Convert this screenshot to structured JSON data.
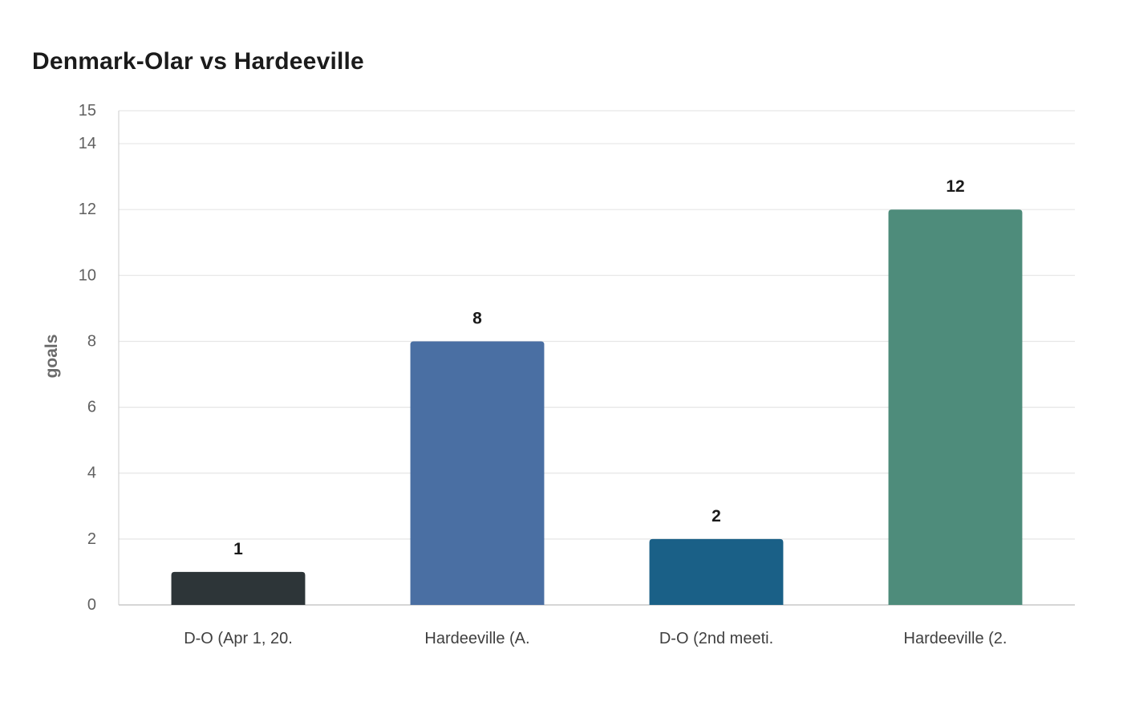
{
  "chart_data": {
    "type": "bar",
    "title": "Denmark-Olar vs Hardeeville",
    "xlabel": "",
    "ylabel": "goals",
    "categories": [
      "D-O (Apr 1, 20.",
      "Hardeeville (A.",
      "D-O (2nd meeti.",
      "Hardeeville (2."
    ],
    "values": [
      1,
      8,
      2,
      12
    ],
    "colors": [
      "#2d3538",
      "#4a6fa3",
      "#1a6087",
      "#4e8c7b"
    ],
    "ylim": [
      0,
      15
    ],
    "yticks": [
      0,
      2,
      4,
      6,
      8,
      10,
      12,
      14,
      15
    ],
    "grid": true,
    "legend": "none"
  }
}
